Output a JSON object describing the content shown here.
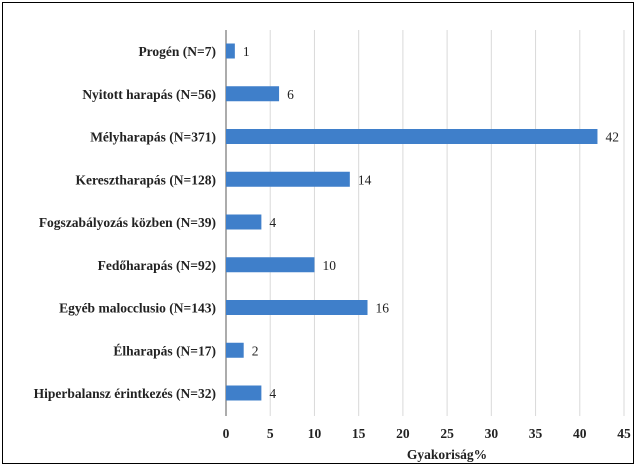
{
  "chart_data": {
    "type": "bar",
    "orientation": "horizontal",
    "categories": [
      "Progén (N=7)",
      "Nyitott harapás (N=56)",
      "Mélyharapás (N=371)",
      "Kereszt­harapás (N=128)",
      "Fogszabályozás közben (N=39)",
      "Fedőharapás (N=92)",
      "Egyéb malocclusio (N=143)",
      "Élharapás (N=17)",
      "Hiperbalansz érintkezés (N=32)"
    ],
    "values": [
      1,
      6,
      42,
      14,
      4,
      10,
      16,
      2,
      4
    ],
    "xlabel": "Gyakoriság%",
    "ylabel": "",
    "xlim": [
      0,
      45
    ],
    "xticks": [
      0,
      5,
      10,
      15,
      20,
      25,
      30,
      35,
      40,
      45
    ],
    "grid": "vertical",
    "legend": "none",
    "bar_color": "#3f7fca"
  }
}
